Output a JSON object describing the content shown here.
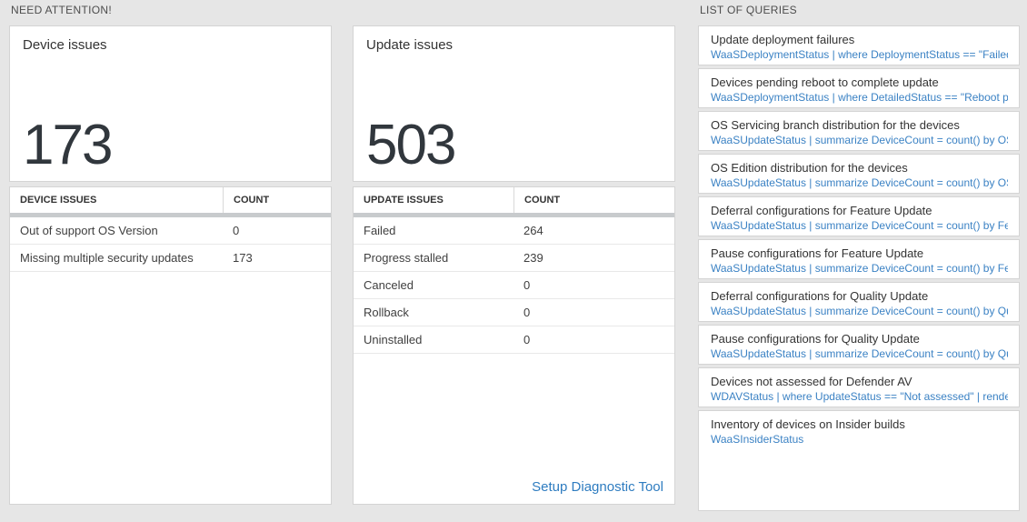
{
  "colors": {
    "page_bg": "#e6e6e6",
    "big_number": "#31373d",
    "divider_bar": "#c8cbcd",
    "query_link_blue": "#3b82c4",
    "diag_link_blue": "#2e7cc0"
  },
  "sections": {
    "need_attention": {
      "label": "NEED ATTENTION!"
    },
    "list_of_queries": {
      "label": "LIST OF QUERIES"
    }
  },
  "device_card": {
    "title": "Device issues",
    "big_number": "173",
    "table": {
      "headers": [
        "DEVICE ISSUES",
        "COUNT"
      ],
      "rows": [
        {
          "label": "Out of support OS Version",
          "count": "0"
        },
        {
          "label": "Missing multiple security updates",
          "count": "173"
        }
      ]
    }
  },
  "update_card": {
    "title": "Update issues",
    "big_number": "503",
    "table": {
      "headers": [
        "UPDATE ISSUES",
        "COUNT"
      ],
      "rows": [
        {
          "label": "Failed",
          "count": "264"
        },
        {
          "label": "Progress stalled",
          "count": "239"
        },
        {
          "label": "Canceled",
          "count": "0"
        },
        {
          "label": "Rollback",
          "count": "0"
        },
        {
          "label": "Uninstalled",
          "count": "0"
        }
      ]
    },
    "link": "Setup Diagnostic Tool"
  },
  "queries": {
    "items": [
      {
        "title": "Update deployment failures",
        "query": "WaaSDeploymentStatus | where DeploymentStatus == \"Failed\" |..."
      },
      {
        "title": "Devices pending reboot to complete update",
        "query": "WaaSDeploymentStatus | where DetailedStatus == \"Reboot pend..."
      },
      {
        "title": "OS Servicing branch distribution for the devices",
        "query": "WaaSUpdateStatus | summarize DeviceCount = count() by OSSer..."
      },
      {
        "title": "OS Edition distribution for the devices",
        "query": "WaaSUpdateStatus | summarize DeviceCount = count() by OSEdit..."
      },
      {
        "title": "Deferral configurations for Feature Update",
        "query": "WaaSUpdateStatus | summarize DeviceCount = count() by Featur..."
      },
      {
        "title": "Pause configurations for Feature Update",
        "query": "WaaSUpdateStatus | summarize DeviceCount = count() by Featur..."
      },
      {
        "title": "Deferral configurations for Quality Update",
        "query": "WaaSUpdateStatus | summarize DeviceCount = count() by Qualit..."
      },
      {
        "title": "Pause configurations for Quality Update",
        "query": "WaaSUpdateStatus | summarize DeviceCount = count() by Qualit..."
      },
      {
        "title": "Devices not assessed for Defender AV",
        "query": "WDAVStatus | where UpdateStatus == \"Not assessed\" | render ta..."
      },
      {
        "title": "Inventory of devices on Insider builds",
        "query": "WaaSInsiderStatus"
      }
    ]
  }
}
